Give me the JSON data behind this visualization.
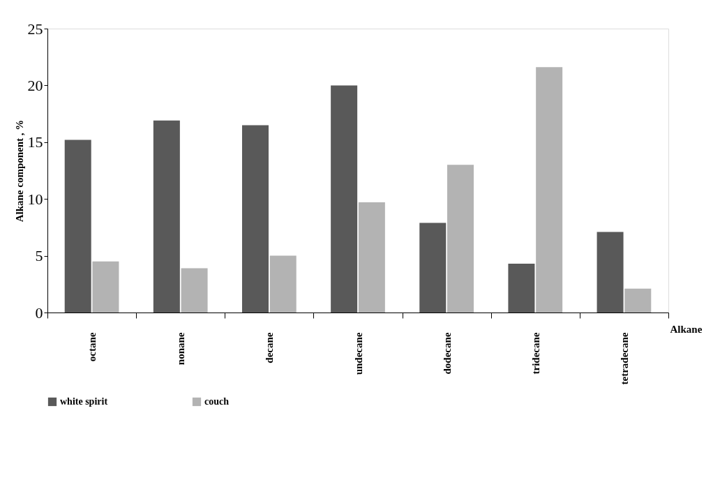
{
  "chart_data": {
    "type": "bar",
    "xlabel": "Alkane",
    "ylabel": "Alkane component , %",
    "categories": [
      "octane",
      "nonane",
      "decane",
      "undecane",
      "dodecane",
      "tridecane",
      "tetradecane"
    ],
    "series": [
      {
        "name": "white spirit",
        "color": "#595959",
        "values": [
          15.2,
          16.9,
          16.5,
          20.0,
          7.9,
          4.3,
          7.1
        ]
      },
      {
        "name": "couch",
        "color": "#b3b3b3",
        "values": [
          4.5,
          3.9,
          5.0,
          9.7,
          13.0,
          21.6,
          2.1
        ]
      }
    ],
    "ylim": [
      0,
      25
    ],
    "yticks": [
      0,
      5,
      10,
      15,
      20,
      25
    ],
    "grid": false,
    "legend": "bottom"
  }
}
